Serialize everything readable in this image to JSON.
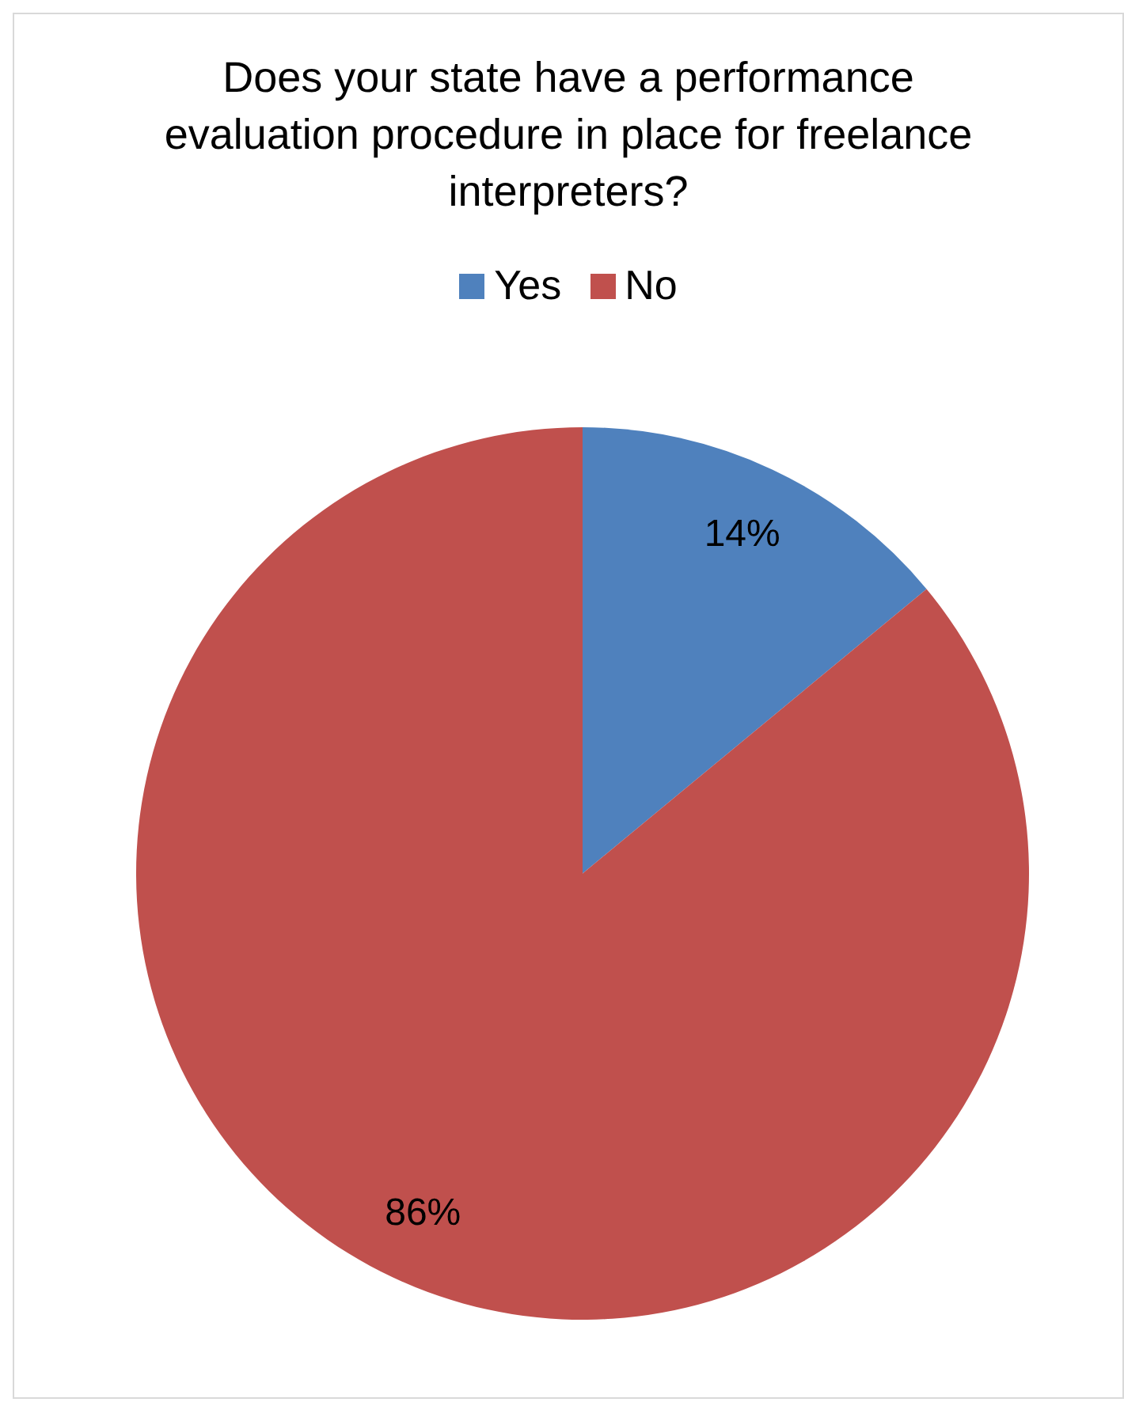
{
  "chart_data": {
    "type": "pie",
    "title": "Does your state have a performance evaluation procedure in place for freelance interpreters?",
    "categories": [
      "Yes",
      "No"
    ],
    "values": [
      14,
      86
    ],
    "value_labels": [
      "14%",
      "86%"
    ],
    "colors": [
      "#4f81bd",
      "#c0504d"
    ],
    "legend": "top"
  }
}
